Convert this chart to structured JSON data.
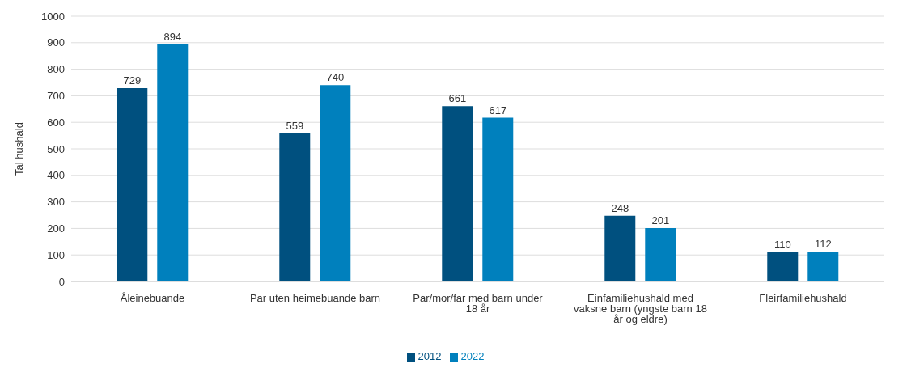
{
  "chart_data": {
    "type": "bar",
    "ylabel": "Tal hushald",
    "categories": [
      "Åleinebuande",
      "Par uten heimebuande barn",
      "Par/mor/far med barn under 18 år",
      "Einfamiliehushald med vaksne barn (yngste barn 18 år og eldre)",
      "Fleirfamiliehushald"
    ],
    "series": [
      {
        "name": "2012",
        "color": "#00507f",
        "values": [
          729,
          559,
          661,
          248,
          110
        ]
      },
      {
        "name": "2022",
        "color": "#0080bd",
        "values": [
          894,
          740,
          617,
          201,
          112
        ]
      }
    ],
    "ylim": [
      0,
      1000
    ],
    "yticks": [
      0,
      100,
      200,
      300,
      400,
      500,
      600,
      700,
      800,
      900,
      1000
    ],
    "grid": "y",
    "legend": "bottom",
    "data_labels": true
  }
}
